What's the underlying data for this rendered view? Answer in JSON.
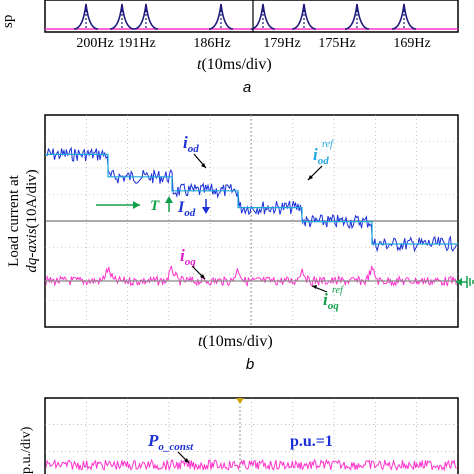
{
  "panel_a": {
    "ylabel_fragment": "sp",
    "freq_labels": [
      "200Hz",
      "191Hz",
      "186Hz",
      "179Hz",
      "175Hz",
      "169Hz"
    ],
    "xlabel_var": "t",
    "xlabel_unit": "(10ms/div)",
    "sublabel": "a"
  },
  "panel_b": {
    "ylabel_line1": "Load current at",
    "ylabel_line2_var": "dq-axis",
    "ylabel_line2_unit": "(10A/div)",
    "iod_label": "i",
    "iod_sub": "od",
    "iod_ref_label": "i",
    "iod_ref_sub": "od",
    "iod_ref_sup": "ref",
    "T_label": "T",
    "Iod_label": "I",
    "Iod_sub": "od",
    "ioq_label": "i",
    "ioq_sub": "oq",
    "ioq_ref_label": "i",
    "ioq_ref_sub": "oq",
    "ioq_ref_sup": "ref",
    "xlabel_var": "t",
    "xlabel_unit": "(10ms/div)",
    "sublabel": "b"
  },
  "panel_c": {
    "ylabel_fragment": "p.u./div)",
    "p_label": "P",
    "p_sub": "o_const",
    "pu_label": "p.u.=1"
  },
  "colors": {
    "blue_trace": "#1a2fd6",
    "magenta_trace": "#ff33cc",
    "label_blue": "#1a2fd6",
    "label_cyan": "#1ea8e0",
    "label_magenta": "#e01fc8",
    "label_green": "#12a04a",
    "peak_navy": "#1d1a7a"
  },
  "chart_data": [
    {
      "type": "line",
      "title": "",
      "xlabel": "t(10ms/div)",
      "ylabel": "sp",
      "series": [
        {
          "values": [
            200,
            191,
            186,
            179,
            175,
            169
          ]
        }
      ],
      "categories": [
        "200Hz",
        "191Hz",
        "186Hz",
        "179Hz",
        "175Hz",
        "169Hz"
      ]
    },
    {
      "type": "line",
      "title": "",
      "xlabel": "t(10ms/div)",
      "ylabel": "Load current at dq-axis(10A/div)",
      "series": [
        {
          "name": "iod",
          "values": [
            5.2,
            4.4,
            3.9,
            3.3,
            2.8,
            2.0
          ]
        },
        {
          "name": "ioq",
          "values": [
            0,
            0,
            0,
            0,
            0,
            0
          ]
        }
      ],
      "grid": true
    },
    {
      "type": "line",
      "title": "",
      "ylabel": "p.u./div)",
      "series": [
        {
          "name": "Po_const",
          "values": [
            1,
            1,
            1,
            1,
            1,
            1
          ]
        }
      ],
      "grid": true
    }
  ]
}
